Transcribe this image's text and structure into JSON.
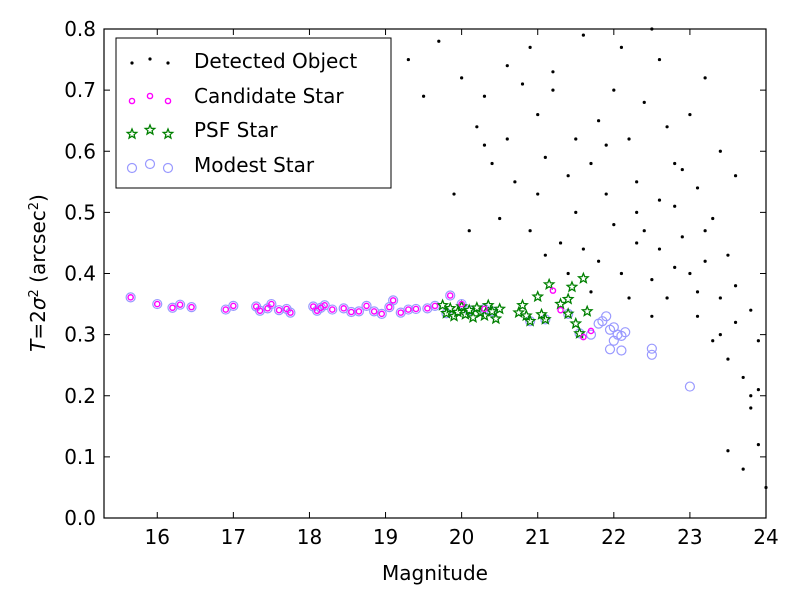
{
  "chart_data": {
    "type": "scatter",
    "title": "",
    "xlabel": "Magnitude",
    "ylabel": "T = 2σ² (arcsec²)",
    "ylabel_parts": {
      "base": "(arcsec",
      "sup": "2",
      "close": ")"
    },
    "xlim": [
      15.3,
      24
    ],
    "ylim": [
      0.0,
      0.8
    ],
    "x_ticks": [
      16,
      17,
      18,
      19,
      20,
      21,
      22,
      23,
      24
    ],
    "y_ticks": [
      0.0,
      0.1,
      0.2,
      0.3,
      0.4,
      0.5,
      0.6,
      0.7,
      0.8
    ],
    "x_tick_labels": [
      "16",
      "17",
      "18",
      "19",
      "20",
      "21",
      "22",
      "23",
      "24"
    ],
    "y_tick_labels": [
      "0.0",
      "0.1",
      "0.2",
      "0.3",
      "0.4",
      "0.5",
      "0.6",
      "0.7",
      "0.8"
    ],
    "grid": false,
    "legend_position": "top-left",
    "series": [
      {
        "name": "Detected Object",
        "marker": "dot",
        "color": "#000000",
        "points": [
          [
            19.7,
            0.78
          ],
          [
            20.0,
            0.72
          ],
          [
            20.2,
            0.64
          ],
          [
            20.3,
            0.61
          ],
          [
            20.6,
            0.74
          ],
          [
            20.8,
            0.71
          ],
          [
            21.0,
            0.66
          ],
          [
            21.2,
            0.7
          ],
          [
            20.5,
            0.49
          ],
          [
            20.7,
            0.55
          ],
          [
            20.9,
            0.47
          ],
          [
            21.3,
            0.45
          ],
          [
            21.4,
            0.4
          ],
          [
            21.5,
            0.5
          ],
          [
            21.6,
            0.44
          ],
          [
            21.7,
            0.37
          ],
          [
            19.9,
            0.53
          ],
          [
            20.1,
            0.47
          ],
          [
            20.4,
            0.58
          ],
          [
            21.0,
            0.53
          ],
          [
            21.1,
            0.43
          ],
          [
            21.8,
            0.42
          ],
          [
            21.9,
            0.53
          ],
          [
            22.0,
            0.48
          ],
          [
            22.1,
            0.4
          ],
          [
            22.2,
            0.36
          ],
          [
            22.3,
            0.55
          ],
          [
            22.4,
            0.47
          ],
          [
            22.5,
            0.39
          ],
          [
            22.6,
            0.44
          ],
          [
            22.7,
            0.36
          ],
          [
            22.8,
            0.51
          ],
          [
            22.9,
            0.46
          ],
          [
            23.0,
            0.4
          ],
          [
            23.1,
            0.33
          ],
          [
            23.2,
            0.42
          ],
          [
            23.3,
            0.29
          ],
          [
            23.4,
            0.36
          ],
          [
            23.5,
            0.26
          ],
          [
            23.6,
            0.32
          ],
          [
            23.7,
            0.23
          ],
          [
            23.8,
            0.18
          ],
          [
            23.9,
            0.12
          ],
          [
            24.0,
            0.05
          ],
          [
            23.5,
            0.11
          ],
          [
            23.7,
            0.08
          ],
          [
            23.8,
            0.2
          ],
          [
            23.9,
            0.21
          ],
          [
            22.2,
            0.62
          ],
          [
            22.4,
            0.68
          ],
          [
            22.6,
            0.75
          ],
          [
            22.8,
            0.58
          ],
          [
            23.0,
            0.66
          ],
          [
            23.2,
            0.72
          ],
          [
            23.4,
            0.6
          ],
          [
            23.6,
            0.56
          ],
          [
            21.5,
            0.62
          ],
          [
            21.8,
            0.65
          ],
          [
            22.0,
            0.7
          ],
          [
            22.1,
            0.77
          ],
          [
            22.5,
            0.8
          ],
          [
            22.7,
            0.64
          ],
          [
            23.1,
            0.54
          ],
          [
            23.3,
            0.49
          ],
          [
            21.4,
            0.56
          ],
          [
            21.7,
            0.58
          ],
          [
            21.9,
            0.61
          ],
          [
            22.3,
            0.5
          ],
          [
            22.6,
            0.52
          ],
          [
            22.9,
            0.57
          ],
          [
            23.2,
            0.47
          ],
          [
            23.5,
            0.43
          ],
          [
            21.6,
            0.79
          ],
          [
            21.2,
            0.73
          ],
          [
            20.9,
            0.77
          ],
          [
            21.1,
            0.59
          ],
          [
            20.6,
            0.62
          ],
          [
            20.3,
            0.69
          ],
          [
            19.5,
            0.69
          ],
          [
            19.3,
            0.75
          ],
          [
            23.6,
            0.38
          ],
          [
            23.8,
            0.34
          ],
          [
            23.9,
            0.29
          ],
          [
            23.4,
            0.3
          ],
          [
            23.1,
            0.37
          ],
          [
            22.8,
            0.41
          ],
          [
            22.5,
            0.33
          ],
          [
            22.3,
            0.45
          ]
        ]
      },
      {
        "name": "Candidate Star",
        "marker": "circle",
        "color": "#ff00ff",
        "points": [
          [
            15.65,
            0.361
          ],
          [
            16.0,
            0.35
          ],
          [
            16.2,
            0.344
          ],
          [
            16.3,
            0.349
          ],
          [
            16.45,
            0.345
          ],
          [
            16.9,
            0.341
          ],
          [
            17.0,
            0.347
          ],
          [
            17.3,
            0.346
          ],
          [
            17.35,
            0.339
          ],
          [
            17.45,
            0.343
          ],
          [
            17.5,
            0.35
          ],
          [
            17.6,
            0.34
          ],
          [
            17.7,
            0.342
          ],
          [
            17.75,
            0.336
          ],
          [
            18.05,
            0.346
          ],
          [
            18.1,
            0.339
          ],
          [
            18.15,
            0.344
          ],
          [
            18.2,
            0.348
          ],
          [
            18.3,
            0.341
          ],
          [
            18.45,
            0.343
          ],
          [
            18.55,
            0.337
          ],
          [
            18.65,
            0.338
          ],
          [
            18.75,
            0.347
          ],
          [
            18.85,
            0.338
          ],
          [
            18.95,
            0.334
          ],
          [
            19.05,
            0.345
          ],
          [
            19.1,
            0.356
          ],
          [
            19.2,
            0.336
          ],
          [
            19.3,
            0.341
          ],
          [
            19.4,
            0.342
          ],
          [
            19.55,
            0.343
          ],
          [
            19.65,
            0.347
          ],
          [
            19.85,
            0.364
          ],
          [
            20.0,
            0.35
          ],
          [
            20.3,
            0.342
          ],
          [
            21.2,
            0.372
          ],
          [
            21.3,
            0.34
          ],
          [
            21.6,
            0.296
          ],
          [
            21.7,
            0.306
          ]
        ]
      },
      {
        "name": "PSF Star",
        "marker": "star",
        "color": "#008000",
        "points": [
          [
            19.75,
            0.348
          ],
          [
            19.8,
            0.335
          ],
          [
            19.85,
            0.343
          ],
          [
            19.9,
            0.33
          ],
          [
            19.95,
            0.337
          ],
          [
            20.0,
            0.346
          ],
          [
            20.05,
            0.333
          ],
          [
            20.1,
            0.34
          ],
          [
            20.15,
            0.328
          ],
          [
            20.2,
            0.344
          ],
          [
            20.25,
            0.336
          ],
          [
            20.3,
            0.331
          ],
          [
            20.35,
            0.348
          ],
          [
            20.4,
            0.338
          ],
          [
            20.45,
            0.326
          ],
          [
            20.5,
            0.342
          ],
          [
            20.8,
            0.348
          ],
          [
            20.85,
            0.331
          ],
          [
            20.9,
            0.322
          ],
          [
            21.0,
            0.362
          ],
          [
            21.05,
            0.333
          ],
          [
            21.1,
            0.325
          ],
          [
            21.15,
            0.382
          ],
          [
            21.3,
            0.35
          ],
          [
            21.4,
            0.334
          ],
          [
            21.45,
            0.378
          ],
          [
            21.5,
            0.318
          ],
          [
            21.55,
            0.302
          ],
          [
            21.6,
            0.392
          ],
          [
            21.65,
            0.338
          ],
          [
            21.4,
            0.358
          ],
          [
            20.75,
            0.336
          ]
        ]
      },
      {
        "name": "Modest Star",
        "marker": "open-circle",
        "color": "#9999ff",
        "points": [
          [
            15.65,
            0.361
          ],
          [
            16.0,
            0.35
          ],
          [
            16.2,
            0.344
          ],
          [
            16.3,
            0.349
          ],
          [
            16.45,
            0.345
          ],
          [
            16.9,
            0.341
          ],
          [
            17.0,
            0.347
          ],
          [
            17.3,
            0.346
          ],
          [
            17.35,
            0.339
          ],
          [
            17.45,
            0.343
          ],
          [
            17.5,
            0.35
          ],
          [
            17.6,
            0.34
          ],
          [
            17.7,
            0.342
          ],
          [
            17.75,
            0.336
          ],
          [
            18.05,
            0.346
          ],
          [
            18.1,
            0.339
          ],
          [
            18.15,
            0.344
          ],
          [
            18.2,
            0.348
          ],
          [
            18.3,
            0.341
          ],
          [
            18.45,
            0.343
          ],
          [
            18.55,
            0.337
          ],
          [
            18.65,
            0.338
          ],
          [
            18.75,
            0.347
          ],
          [
            18.85,
            0.338
          ],
          [
            18.95,
            0.334
          ],
          [
            19.05,
            0.345
          ],
          [
            19.1,
            0.356
          ],
          [
            19.2,
            0.336
          ],
          [
            19.3,
            0.341
          ],
          [
            19.4,
            0.342
          ],
          [
            19.55,
            0.343
          ],
          [
            19.65,
            0.347
          ],
          [
            19.85,
            0.364
          ],
          [
            20.0,
            0.35
          ],
          [
            20.3,
            0.342
          ],
          [
            19.8,
            0.335
          ],
          [
            20.1,
            0.34
          ],
          [
            20.4,
            0.338
          ],
          [
            20.9,
            0.322
          ],
          [
            21.1,
            0.325
          ],
          [
            21.4,
            0.334
          ],
          [
            21.55,
            0.302
          ],
          [
            21.7,
            0.3
          ],
          [
            21.8,
            0.318
          ],
          [
            21.85,
            0.322
          ],
          [
            21.9,
            0.33
          ],
          [
            21.95,
            0.308
          ],
          [
            22.0,
            0.312
          ],
          [
            22.05,
            0.3
          ],
          [
            22.1,
            0.298
          ],
          [
            22.15,
            0.304
          ],
          [
            21.95,
            0.276
          ],
          [
            22.0,
            0.29
          ],
          [
            22.1,
            0.274
          ],
          [
            22.5,
            0.267
          ],
          [
            22.5,
            0.277
          ],
          [
            23.0,
            0.215
          ]
        ]
      }
    ]
  },
  "legend": {
    "items": [
      {
        "label": "Detected Object",
        "marker": "dot",
        "color": "#000000"
      },
      {
        "label": "Candidate Star",
        "marker": "circle",
        "color": "#ff00ff"
      },
      {
        "label": "PSF Star",
        "marker": "star",
        "color": "#008000"
      },
      {
        "label": "Modest Star",
        "marker": "open-circle",
        "color": "#9999ff"
      }
    ]
  }
}
